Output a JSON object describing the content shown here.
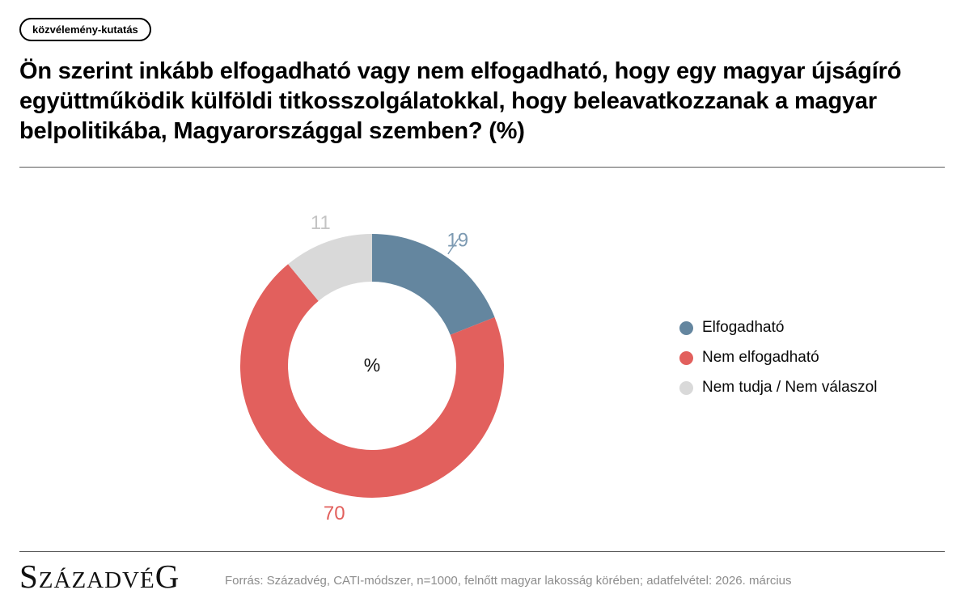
{
  "badge": {
    "label": "közvélemény-kutatás"
  },
  "title": "Ön szerint inkább elfogadható vagy nem elfogadható, hogy egy magyar újságíró együttműködik külföldi titkosszolgálatokkal, hogy beleavatkozzanak a magyar belpolitikába, Magyarországgal szemben? (%)",
  "chart_data": {
    "type": "pie",
    "subtype": "donut",
    "title": "",
    "center_label": "%",
    "categories": [
      "Elfogadható",
      "Nem elfogadható",
      "Nem tudja / Nem válaszol"
    ],
    "values": [
      19,
      70,
      11
    ],
    "unit": "%",
    "colors": [
      "#64869f",
      "#e2605d",
      "#d9d9d9"
    ],
    "label_colors": [
      "#7d9ab2",
      "#e2605d",
      "#c4c4c4"
    ],
    "start_angle_deg": 0,
    "direction": "clockwise",
    "legend_position": "right",
    "leader_line_segment": 0
  },
  "legend": {
    "items": [
      {
        "label": "Elfogadható"
      },
      {
        "label": "Nem elfogadható"
      },
      {
        "label": "Nem tudja / Nem válaszol"
      }
    ]
  },
  "footer": {
    "logo": "SzázadvéG",
    "source": "Forrás: Századvég, CATI-módszer, n=1000, felnőtt magyar lakosság körében; adatfelvétel: 2026. március"
  }
}
